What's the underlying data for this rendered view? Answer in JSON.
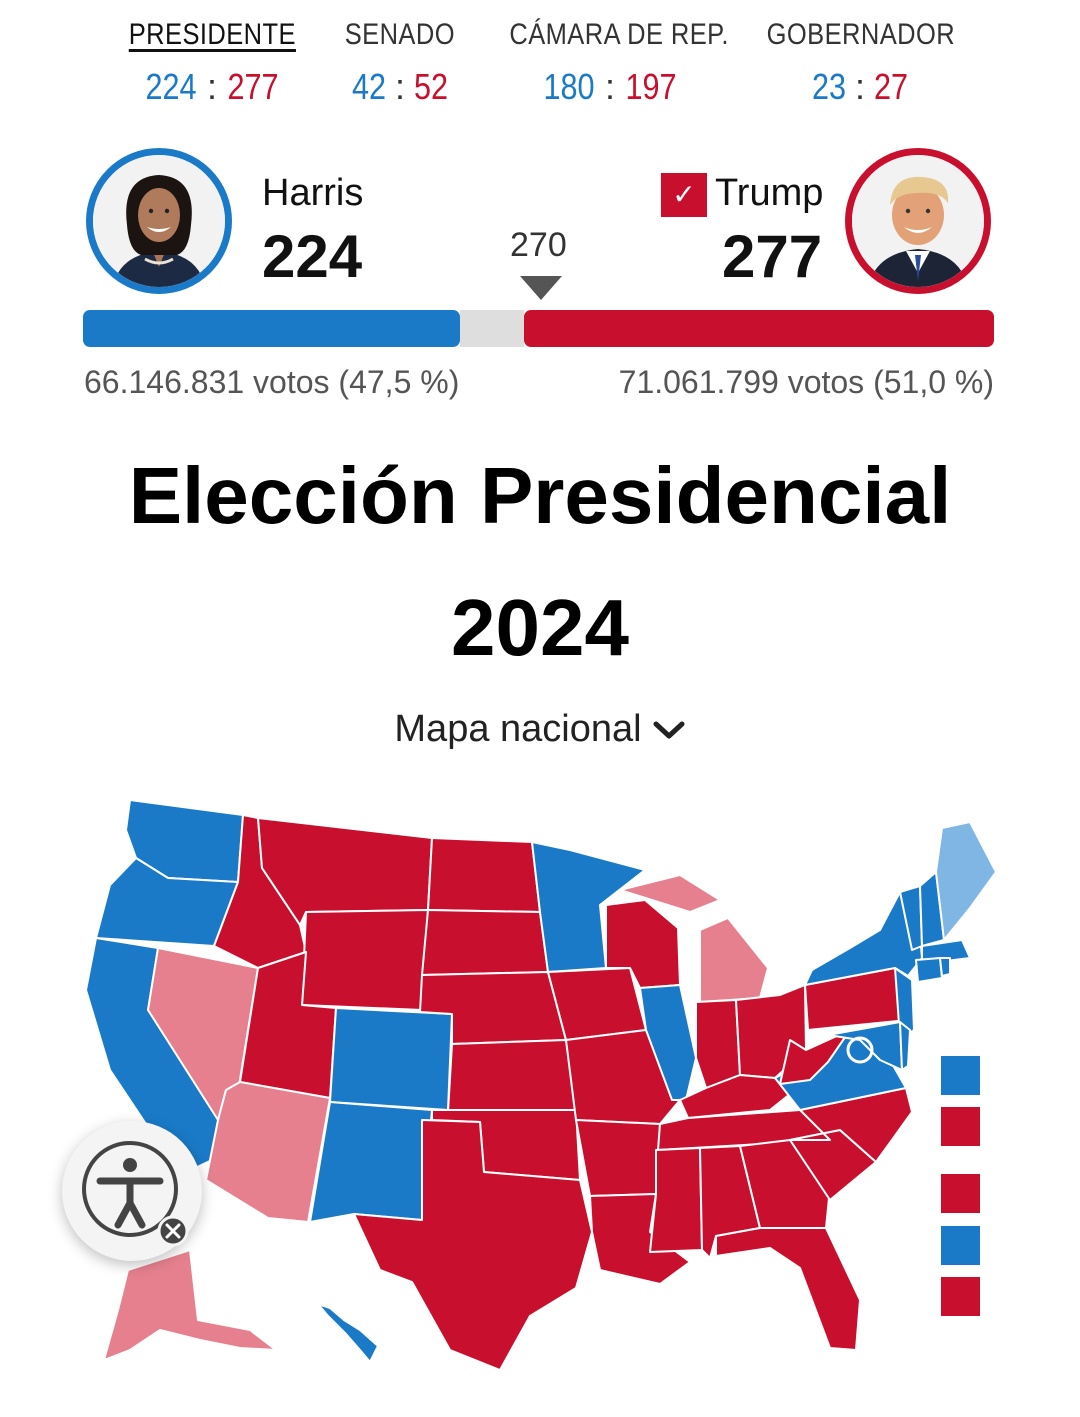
{
  "tabs": [
    {
      "label": "PRESIDENTE",
      "dem": "224",
      "rep": "277",
      "active": true
    },
    {
      "label": "SENADO",
      "dem": "42",
      "rep": "52",
      "active": false
    },
    {
      "label": "CÁMARA DE REP.",
      "dem": "180",
      "rep": "197",
      "active": false
    },
    {
      "label": "GOBERNADOR",
      "dem": "23",
      "rep": "27",
      "active": false
    }
  ],
  "candidates": {
    "dem": {
      "name": "Harris",
      "electoral_votes": "224",
      "votes_text": "66.146.831 votos (47,5 %)",
      "color": "#1a7ac8"
    },
    "rep": {
      "name": "Trump",
      "electoral_votes": "277",
      "votes_text": "71.061.799 votos (51,0 %)",
      "color": "#c8102e",
      "winner": true
    }
  },
  "threshold": "270",
  "title": "Elección Presidencial",
  "year": "2024",
  "map_selector": {
    "label": "Mapa nacional"
  },
  "colors": {
    "dem": "#1a7ac8",
    "rep": "#c8102e",
    "lean_dem": "#7fb6e4",
    "lean_rep": "#e6808f",
    "undecided": "#dedede"
  },
  "legend": [
    "dem",
    "rep",
    "rep",
    "dem",
    "rep"
  ],
  "icons": {
    "check": "checkmark-icon",
    "chevron": "chevron-down-icon",
    "accessibility": "accessibility-icon",
    "close": "close-icon"
  }
}
